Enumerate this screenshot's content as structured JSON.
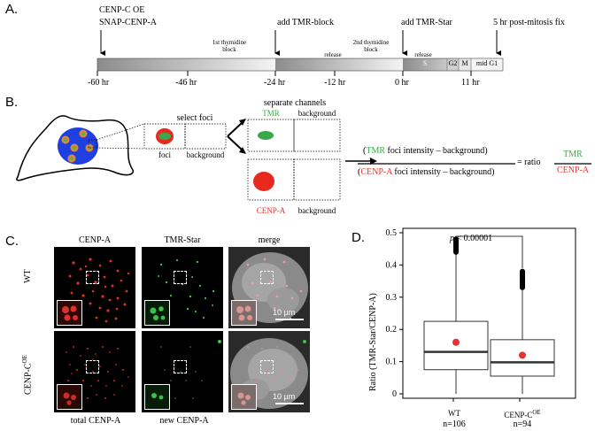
{
  "panel_a": {
    "letter": "A.",
    "top_labels": {
      "cenpc_oe": "CENP-C OE",
      "snap_cenpa": "SNAP-CENP-A",
      "add_tmr_block": "add TMR-block",
      "add_tmr_star": "add TMR-Star",
      "post_mitosis": "5 hr post-mitosis fix"
    },
    "band_labels": {
      "thymidine1_line1": "1st thymidine",
      "thymidine1_line2": "block",
      "release1": "release",
      "thymidine2_line1": "2nd thymidine",
      "thymidine2_line2": "block",
      "release2": "release",
      "s": "S",
      "g2": "G2",
      "m": "M",
      "mid_g1": "mid G1"
    },
    "ticks": [
      "-60 hr",
      "-46 hr",
      "-24 hr",
      "-12 hr",
      "0 hr",
      "11 hr"
    ]
  },
  "panel_b": {
    "letter": "B.",
    "select_foci": "select foci",
    "foci": "foci",
    "background": "background",
    "separate_channels": "separate channels",
    "tmr": "TMR",
    "background2": "background",
    "cenpa": "CENP-A",
    "background3": "background",
    "num_tmr": "TMR",
    "num_rest": " foci intensity – background)",
    "den_cenpa": "CENP-A",
    "den_rest": " foci intensity – background)",
    "equals_ratio": "= ratio",
    "ratio_tmr": "TMR",
    "ratio_cenpa": "CENP-A"
  },
  "panel_c": {
    "letter": "C.",
    "col_headers": [
      "CENP-A",
      "TMR-Star",
      "merge"
    ],
    "row_labels": [
      "WT",
      "CENP-C"
    ],
    "row2_sup": "OE",
    "scale": "10 µm",
    "bottom_labels": [
      "total CENP-A",
      "new CENP-A"
    ]
  },
  "panel_d": {
    "letter": "D.",
    "pvalue_p": "p",
    "pvalue_rest": " < 0.00001",
    "ylabel": "Ratio (TMR-Star/CENP-A)",
    "yticks": [
      "0",
      "0.1",
      "0.2",
      "0.3",
      "0.4",
      "0.5"
    ],
    "groups": [
      {
        "label": "WT",
        "sup": "",
        "n": "n=106"
      },
      {
        "label": "CENP-C",
        "sup": "OE",
        "n": "n=94"
      }
    ]
  },
  "chart_data": {
    "type": "box",
    "title": "",
    "xlabel": "",
    "ylabel": "Ratio (TMR-Star/CENP-A)",
    "ylim": [
      0,
      0.5
    ],
    "categories": [
      "WT",
      "CENP-C OE"
    ],
    "boxes": [
      {
        "name": "WT",
        "whisker_low": 0.0,
        "q1": 0.075,
        "median": 0.13,
        "q3": 0.225,
        "whisker_high": 0.44,
        "mean": 0.16,
        "outliers_from": 0.44,
        "outliers_to": 0.48
      },
      {
        "name": "CENP-C OE",
        "whisker_low": 0.0,
        "q1": 0.055,
        "median": 0.098,
        "q3": 0.168,
        "whisker_high": 0.33,
        "mean": 0.12,
        "outliers_from": 0.33,
        "outliers_to": 0.38
      }
    ],
    "colors": {
      "mean_dot": "#e3342f",
      "box": "#333333"
    },
    "annotation": "p < 0.00001"
  }
}
